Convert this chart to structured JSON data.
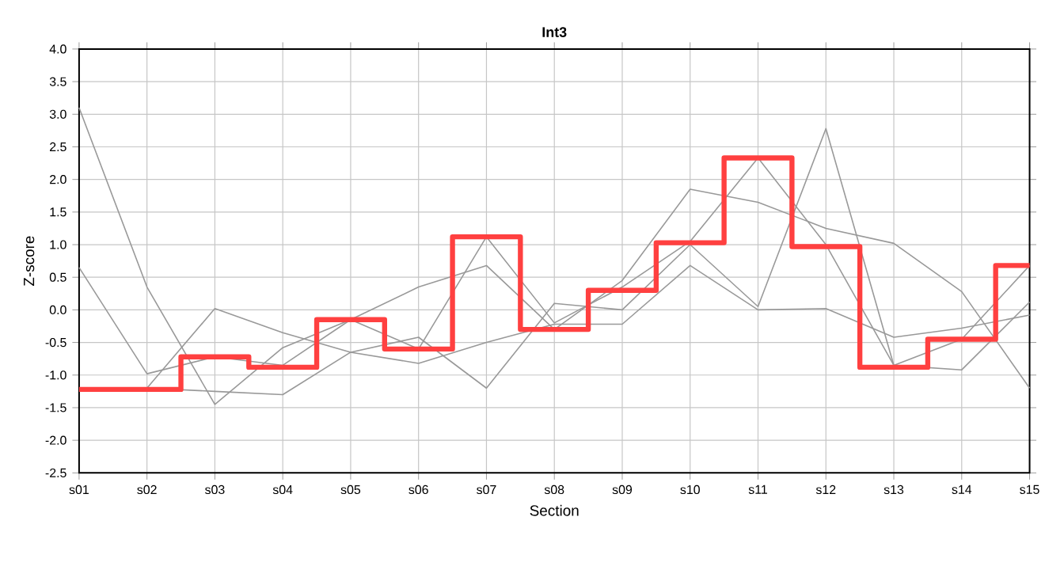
{
  "chart_data": {
    "type": "line",
    "title": "Int3",
    "xlabel": "Section",
    "ylabel": "Z-score",
    "categories": [
      "s01",
      "s02",
      "s03",
      "s04",
      "s05",
      "s06",
      "s07",
      "s08",
      "s09",
      "s10",
      "s11",
      "s12",
      "s13",
      "s14",
      "s15"
    ],
    "ylim": [
      -2.5,
      4.0
    ],
    "yticks": [
      {
        "value": -2.5,
        "label": "-2.5"
      },
      {
        "value": -2,
        "label": "-2.0"
      },
      {
        "value": -1.5,
        "label": "-1.5"
      },
      {
        "value": -1,
        "label": "-1.0"
      },
      {
        "value": -0.5,
        "label": "-0.5"
      },
      {
        "value": 0,
        "label": "0.0"
      },
      {
        "value": 0.5,
        "label": "0.5"
      },
      {
        "value": 1,
        "label": "1.0"
      },
      {
        "value": 1.5,
        "label": "1.5"
      },
      {
        "value": 2,
        "label": "2.0"
      },
      {
        "value": 2.5,
        "label": "2.5"
      },
      {
        "value": 3,
        "label": "3.0"
      },
      {
        "value": 3.5,
        "label": "3.5"
      },
      {
        "value": 4,
        "label": "4.0"
      }
    ],
    "grid": true,
    "marker": "none",
    "series": [
      {
        "color": "#999999",
        "values": [
          3.1,
          0.35,
          -1.45,
          -0.58,
          -0.15,
          -0.6,
          1.12,
          -0.2,
          0.35,
          1.05,
          2.33,
          1.0,
          -0.85,
          -0.45,
          0.68
        ]
      },
      {
        "color": "#999999",
        "values": [
          0.65,
          -0.98,
          -0.72,
          -0.85,
          -0.15,
          0.35,
          0.68,
          -0.3,
          0.45,
          1.85,
          1.65,
          1.25,
          1.02,
          0.28,
          -1.2
        ]
      },
      {
        "color": "#999999",
        "values": [
          null,
          -1.2,
          0.02,
          -0.35,
          -0.65,
          -0.42,
          -1.2,
          0.1,
          0.0,
          1.0,
          0.05,
          2.78,
          -0.85,
          -0.92,
          0.12
        ]
      },
      {
        "color": "#999999",
        "values": [
          null,
          -1.2,
          -1.25,
          -1.3,
          -0.65,
          -0.82,
          -0.5,
          -0.22,
          -0.22,
          0.68,
          0.0,
          0.02,
          -0.42,
          -0.28,
          -0.08
        ]
      },
      {
        "type": "step",
        "color": "#ff4040",
        "values": [
          -1.22,
          -1.22,
          -0.72,
          -0.88,
          -0.15,
          -0.6,
          1.12,
          -0.3,
          0.3,
          1.03,
          2.33,
          0.97,
          -0.88,
          -0.45,
          0.68
        ]
      }
    ]
  }
}
